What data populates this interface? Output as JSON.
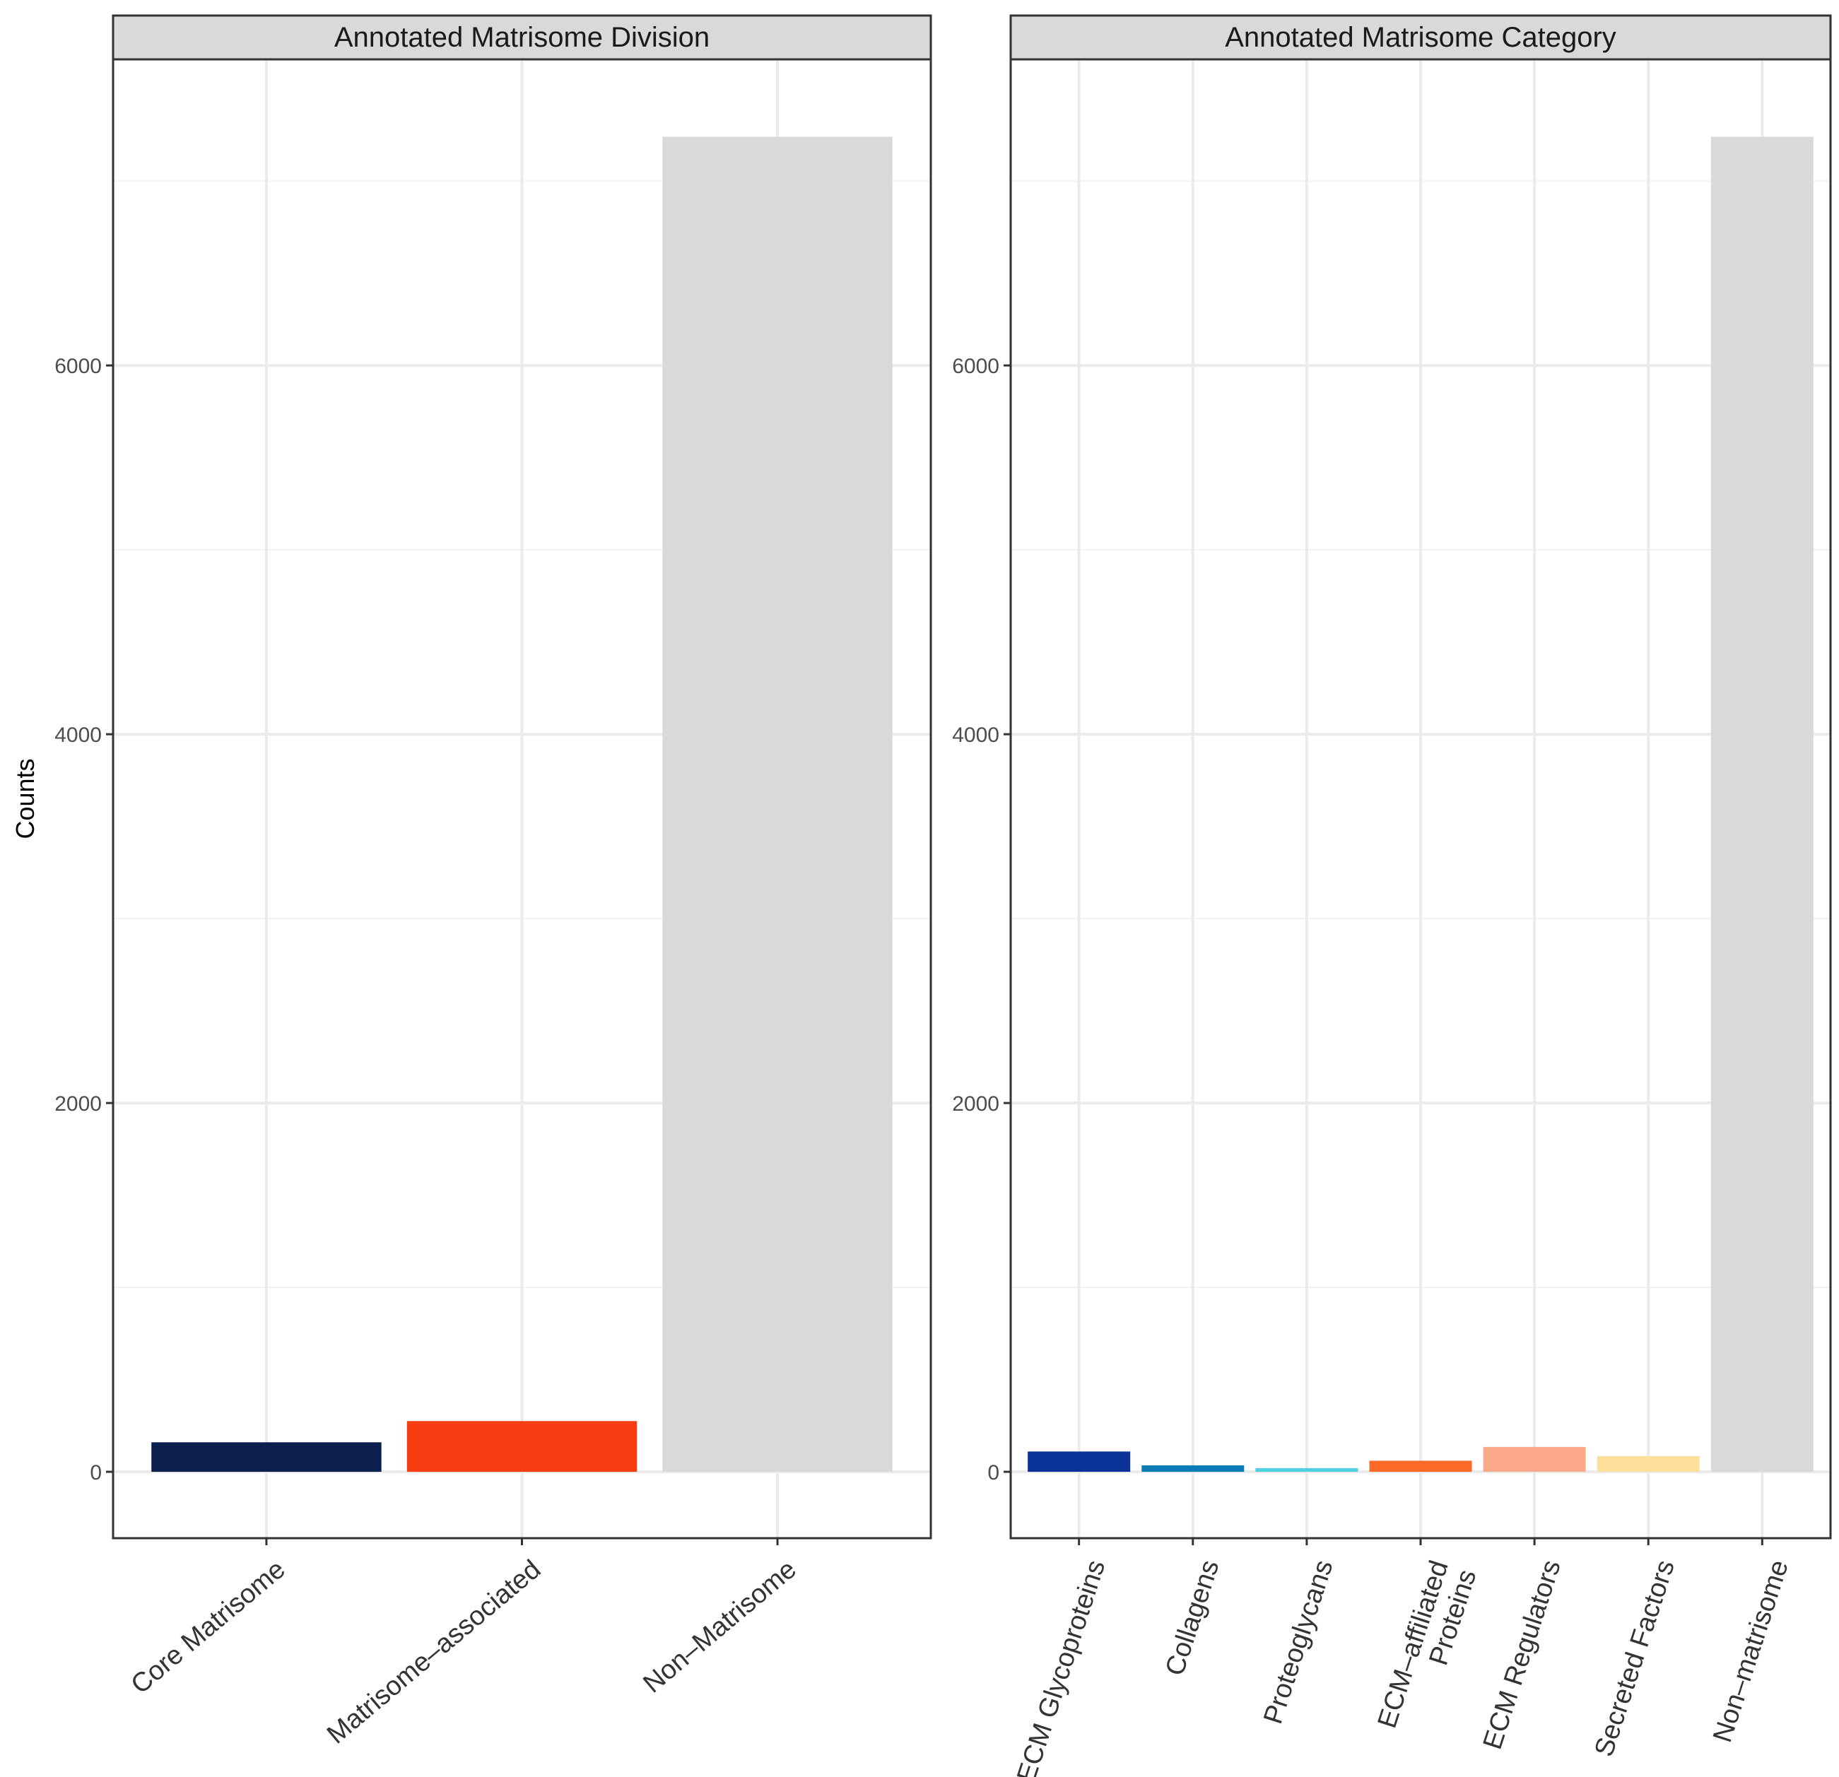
{
  "chart_data": [
    {
      "type": "bar",
      "title": "Annotated Matrisome Division",
      "ylabel": "Counts",
      "xlabel": "",
      "ylim": [
        -360,
        7660
      ],
      "yticks": [
        0,
        2000,
        4000,
        6000
      ],
      "grid": true,
      "categories": [
        "Core Matrisome",
        "Matrisome–associated",
        "Non–Matrisome"
      ],
      "values": [
        160,
        275,
        7240
      ],
      "colors": [
        "#0b1f4f",
        "#f83d12",
        "#d9d9d9"
      ]
    },
    {
      "type": "bar",
      "title": "Annotated Matrisome Category",
      "ylabel": "",
      "xlabel": "",
      "ylim": [
        -360,
        7660
      ],
      "yticks": [
        0,
        2000,
        4000,
        6000
      ],
      "grid": true,
      "categories": [
        "ECM Glycoproteins",
        "Collagens",
        "Proteoglycans",
        "ECM–affiliated\nProteins",
        "ECM Regulators",
        "Secreted Factors",
        "Non–matrisome"
      ],
      "values": [
        110,
        35,
        20,
        60,
        135,
        85,
        7240
      ],
      "colors": [
        "#0a3299",
        "#0a7bb5",
        "#4ed0e0",
        "#fb6a28",
        "#fca98a",
        "#fde19a",
        "#d9d9d9"
      ]
    }
  ]
}
